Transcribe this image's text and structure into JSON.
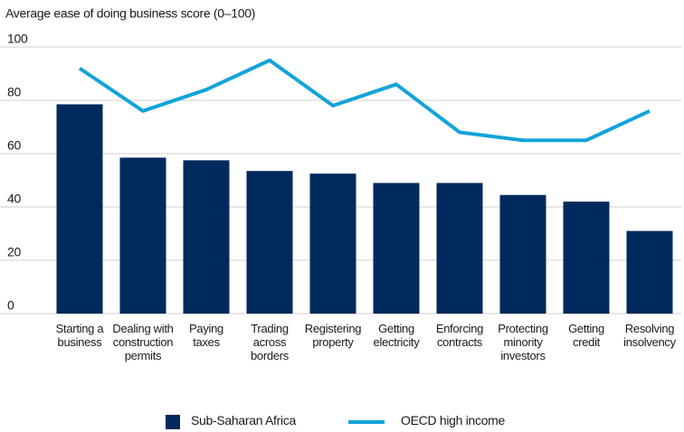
{
  "chart_data": {
    "type": "bar",
    "y_label": "Average ease of doing business score (0–100)",
    "categories": [
      "Starting a business",
      "Dealing with construction permits",
      "Paying taxes",
      "Trading across borders",
      "Registering property",
      "Getting electricity",
      "Enforcing contracts",
      "Protecting minority investors",
      "Getting credit",
      "Resolving insolvency"
    ],
    "series": [
      {
        "name": "Sub-Saharan Africa",
        "type": "bar",
        "color": "#002a5c",
        "values": [
          78.5,
          58.5,
          57.5,
          53.5,
          52.5,
          49,
          49,
          44.5,
          42,
          31
        ]
      },
      {
        "name": "OECD high income",
        "type": "line",
        "color": "#12a3da",
        "values": [
          92,
          76,
          84,
          95,
          78,
          86,
          68,
          65,
          65,
          76
        ]
      }
    ],
    "ylim": [
      0,
      100
    ],
    "yticks": [
      0,
      20,
      40,
      60,
      80,
      100
    ],
    "grid": true,
    "legend": "bottom"
  }
}
